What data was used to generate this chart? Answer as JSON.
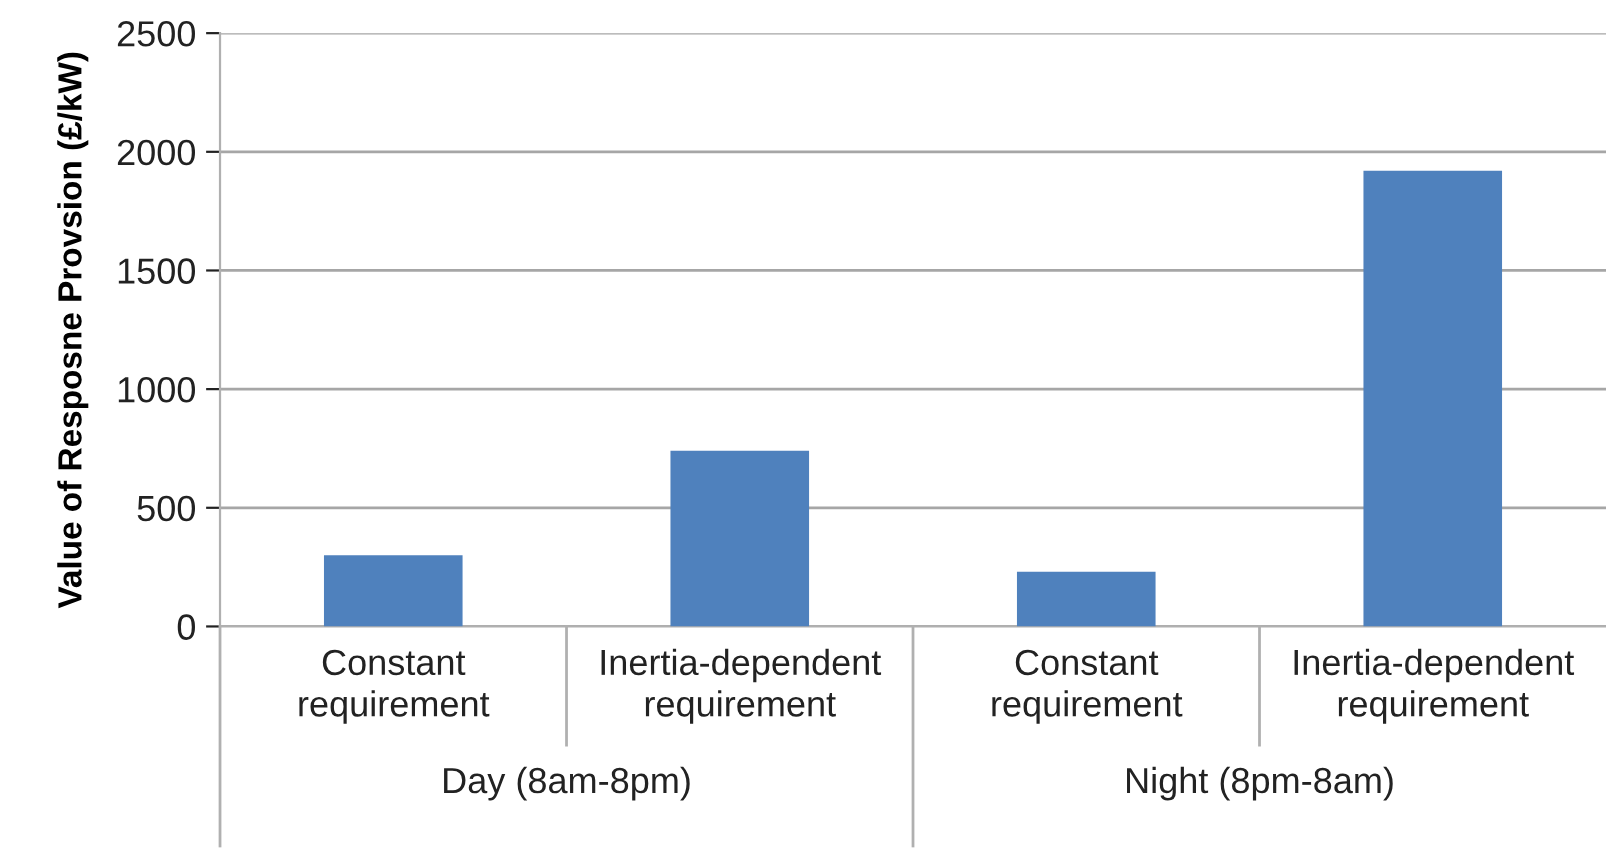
{
  "chart_data": {
    "type": "bar",
    "ylabel": "Value of Resposne Provsion (£/kW)",
    "categories": [
      "Constant\nrequirement",
      "Inertia-dependent\nrequirement",
      "Constant\nrequirement",
      "Inertia-dependent\nrequirement"
    ],
    "values": [
      300,
      740,
      230,
      1920
    ],
    "color": "#4f81bd",
    "ylim": [
      0,
      2500
    ],
    "yticks": [
      0,
      500,
      1000,
      1500,
      2000,
      2500
    ],
    "grid": "y",
    "annotations": [
      "Day (8am-8pm)",
      "Night (8pm-8am)"
    ]
  }
}
